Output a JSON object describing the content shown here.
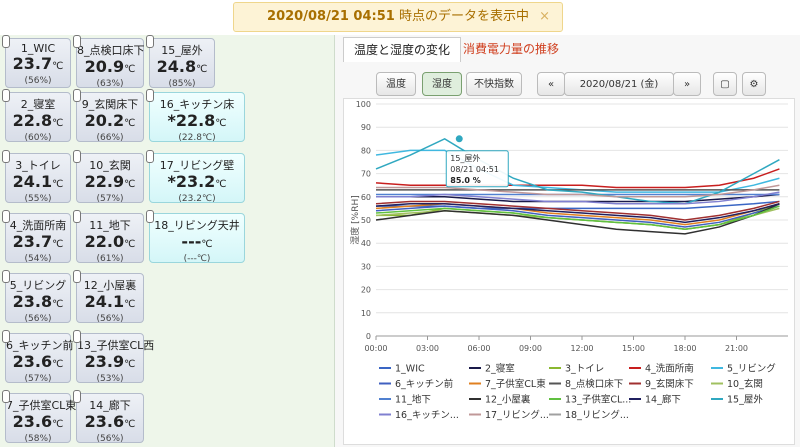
{
  "banner": {
    "timestamp": "2020/08/21 04:51",
    "message": " 時点のデータを表示中",
    "close": "×"
  },
  "sensors": [
    {
      "name": "1_WIC",
      "temp": "23.7",
      "unit": "℃",
      "hum": "(56%)"
    },
    {
      "name": "2_寝室",
      "temp": "22.8",
      "unit": "℃",
      "hum": "(60%)"
    },
    {
      "name": "3_トイレ",
      "temp": "24.1",
      "unit": "℃",
      "hum": "(55%)"
    },
    {
      "name": "4_洗面所南",
      "temp": "23.7",
      "unit": "℃",
      "hum": "(54%)"
    },
    {
      "name": "5_リビング",
      "temp": "23.8",
      "unit": "℃",
      "hum": "(56%)"
    },
    {
      "name": "6_キッチン前",
      "temp": "23.6",
      "unit": "℃",
      "hum": "(57%)"
    },
    {
      "name": "7_子供室CL東",
      "temp": "23.6",
      "unit": "℃",
      "hum": "(58%)"
    },
    {
      "name": "8_点検口床下",
      "temp": "20.9",
      "unit": "℃",
      "hum": "(63%)"
    },
    {
      "name": "9_玄関床下",
      "temp": "20.2",
      "unit": "℃",
      "hum": "(66%)"
    },
    {
      "name": "10_玄関",
      "temp": "22.9",
      "unit": "℃",
      "hum": "(57%)"
    },
    {
      "name": "11_地下",
      "temp": "22.0",
      "unit": "℃",
      "hum": "(61%)"
    },
    {
      "name": "12_小屋裏",
      "temp": "24.1",
      "unit": "℃",
      "hum": "(56%)"
    },
    {
      "name": "13_子供室CL西",
      "temp": "23.9",
      "unit": "℃",
      "hum": "(53%)"
    },
    {
      "name": "14_廊下",
      "temp": "23.6",
      "unit": "℃",
      "hum": "(56%)"
    },
    {
      "name": "15_屋外",
      "temp": "24.8",
      "unit": "℃",
      "hum": "(85%)"
    },
    {
      "name": "16_キッチン床",
      "temp": "*22.8",
      "unit": "℃",
      "hum": "(22.8℃)",
      "highlight": true
    },
    {
      "name": "17_リビング壁",
      "temp": "*23.2",
      "unit": "℃",
      "hum": "(23.2℃)",
      "highlight": true
    },
    {
      "name": "18_リビング天井",
      "temp": "---",
      "unit": "℃",
      "hum": "(---℃)",
      "highlight": true
    }
  ],
  "tabs": [
    "温度と湿度の変化",
    "消費電力量の推移"
  ],
  "toolbar": {
    "modes": [
      "温度",
      "湿度",
      "不快指数"
    ],
    "prev": "«",
    "date": "2020/08/21 (金)",
    "next": "»"
  },
  "chart_data": {
    "type": "line",
    "y_label": "湿度 [%RH]",
    "x": [
      0,
      2,
      4,
      6,
      8,
      10,
      12,
      14,
      16,
      18,
      20,
      22,
      23.5
    ],
    "xlim": [
      0,
      24
    ],
    "xticks": [
      {
        "value": 0,
        "label": "00:00"
      },
      {
        "value": 3,
        "label": "03:00"
      },
      {
        "value": 6,
        "label": "06:00"
      },
      {
        "value": 9,
        "label": "09:00"
      },
      {
        "value": 12,
        "label": "12:00"
      },
      {
        "value": 15,
        "label": "15:00"
      },
      {
        "value": 18,
        "label": "18:00"
      },
      {
        "value": 21,
        "label": "21:00"
      }
    ],
    "ylim": [
      0,
      100
    ],
    "yticks": [
      0,
      10,
      20,
      30,
      40,
      50,
      60,
      70,
      80,
      90,
      100
    ],
    "grid": true,
    "series": [
      {
        "name": "1_WIC",
        "color": "#3a66c4",
        "values": [
          56,
          56,
          56,
          55,
          55,
          55,
          55,
          55,
          55,
          55,
          56,
          57,
          58
        ]
      },
      {
        "name": "2_寝室",
        "color": "#1a1a4a",
        "values": [
          60,
          60,
          60,
          59,
          58,
          58,
          58,
          58,
          58,
          58,
          59,
          60,
          61
        ]
      },
      {
        "name": "3_トイレ",
        "color": "#8ab830",
        "values": [
          52,
          52,
          55,
          54,
          53,
          51,
          50,
          49,
          48,
          46,
          48,
          53,
          57
        ]
      },
      {
        "name": "4_洗面所南",
        "color": "#c81e1e",
        "values": [
          66,
          65,
          65,
          65,
          65,
          65,
          65,
          64,
          64,
          64,
          65,
          68,
          72
        ]
      },
      {
        "name": "5_リビング",
        "color": "#40b8e0",
        "values": [
          78,
          80,
          80,
          72,
          65,
          64,
          63,
          62,
          62,
          62,
          62,
          65,
          68
        ]
      },
      {
        "name": "6_キッチン前",
        "color": "#4060c0",
        "values": [
          54,
          55,
          56,
          55,
          54,
          52,
          51,
          50,
          49,
          47,
          49,
          53,
          56
        ]
      },
      {
        "name": "7_子供室CL東",
        "color": "#e08020",
        "values": [
          55,
          56,
          57,
          56,
          55,
          53,
          52,
          51,
          50,
          48,
          50,
          54,
          57
        ]
      },
      {
        "name": "8_点検口床下",
        "color": "#555555",
        "values": [
          63,
          63,
          63,
          63,
          63,
          63,
          63,
          63,
          63,
          63,
          63,
          63,
          63
        ]
      },
      {
        "name": "9_玄関床下",
        "color": "#a03030",
        "values": [
          57,
          58,
          58,
          57,
          56,
          55,
          54,
          53,
          52,
          50,
          52,
          55,
          58
        ]
      },
      {
        "name": "10_玄関",
        "color": "#a0c060",
        "values": [
          52,
          53,
          54,
          53,
          52,
          51,
          50,
          49,
          48,
          46,
          48,
          52,
          55
        ]
      },
      {
        "name": "11_地下",
        "color": "#5080d0",
        "values": [
          61,
          61,
          61,
          61,
          61,
          61,
          61,
          61,
          61,
          61,
          61,
          61,
          61
        ]
      },
      {
        "name": "12_小屋裏",
        "color": "#303030",
        "values": [
          50,
          52,
          54,
          53,
          52,
          50,
          48,
          46,
          45,
          44,
          47,
          52,
          57
        ]
      },
      {
        "name": "13_子供室CL...",
        "color": "#60c040",
        "values": [
          53,
          54,
          55,
          54,
          53,
          51,
          50,
          49,
          48,
          46,
          48,
          52,
          56
        ]
      },
      {
        "name": "14_廊下",
        "color": "#202060",
        "values": [
          56,
          57,
          57,
          56,
          55,
          54,
          53,
          52,
          51,
          49,
          51,
          54,
          57
        ]
      },
      {
        "name": "15_屋外",
        "color": "#30a8c0",
        "values": [
          72,
          78,
          85,
          76,
          68,
          63,
          62,
          60,
          58,
          57,
          62,
          70,
          76
        ]
      },
      {
        "name": "16_キッチン...",
        "color": "#8080d0",
        "values": [
          60,
          60,
          61,
          60,
          59,
          58,
          58,
          57,
          57,
          57,
          58,
          60,
          62
        ]
      },
      {
        "name": "17_リビング...",
        "color": "#c09898",
        "values": [
          64,
          64,
          64,
          63,
          62,
          61,
          61,
          60,
          60,
          60,
          61,
          63,
          65
        ]
      },
      {
        "name": "18_リビング...",
        "color": "#a0a0a0",
        "values": [
          null,
          null,
          null,
          null,
          null,
          null,
          null,
          null,
          null,
          null,
          null,
          null,
          null
        ]
      }
    ],
    "tooltip": {
      "name": "15_屋外",
      "time": "08/21 04:51",
      "value_label": "85.0 %",
      "x": 4.85,
      "value": 85
    }
  }
}
